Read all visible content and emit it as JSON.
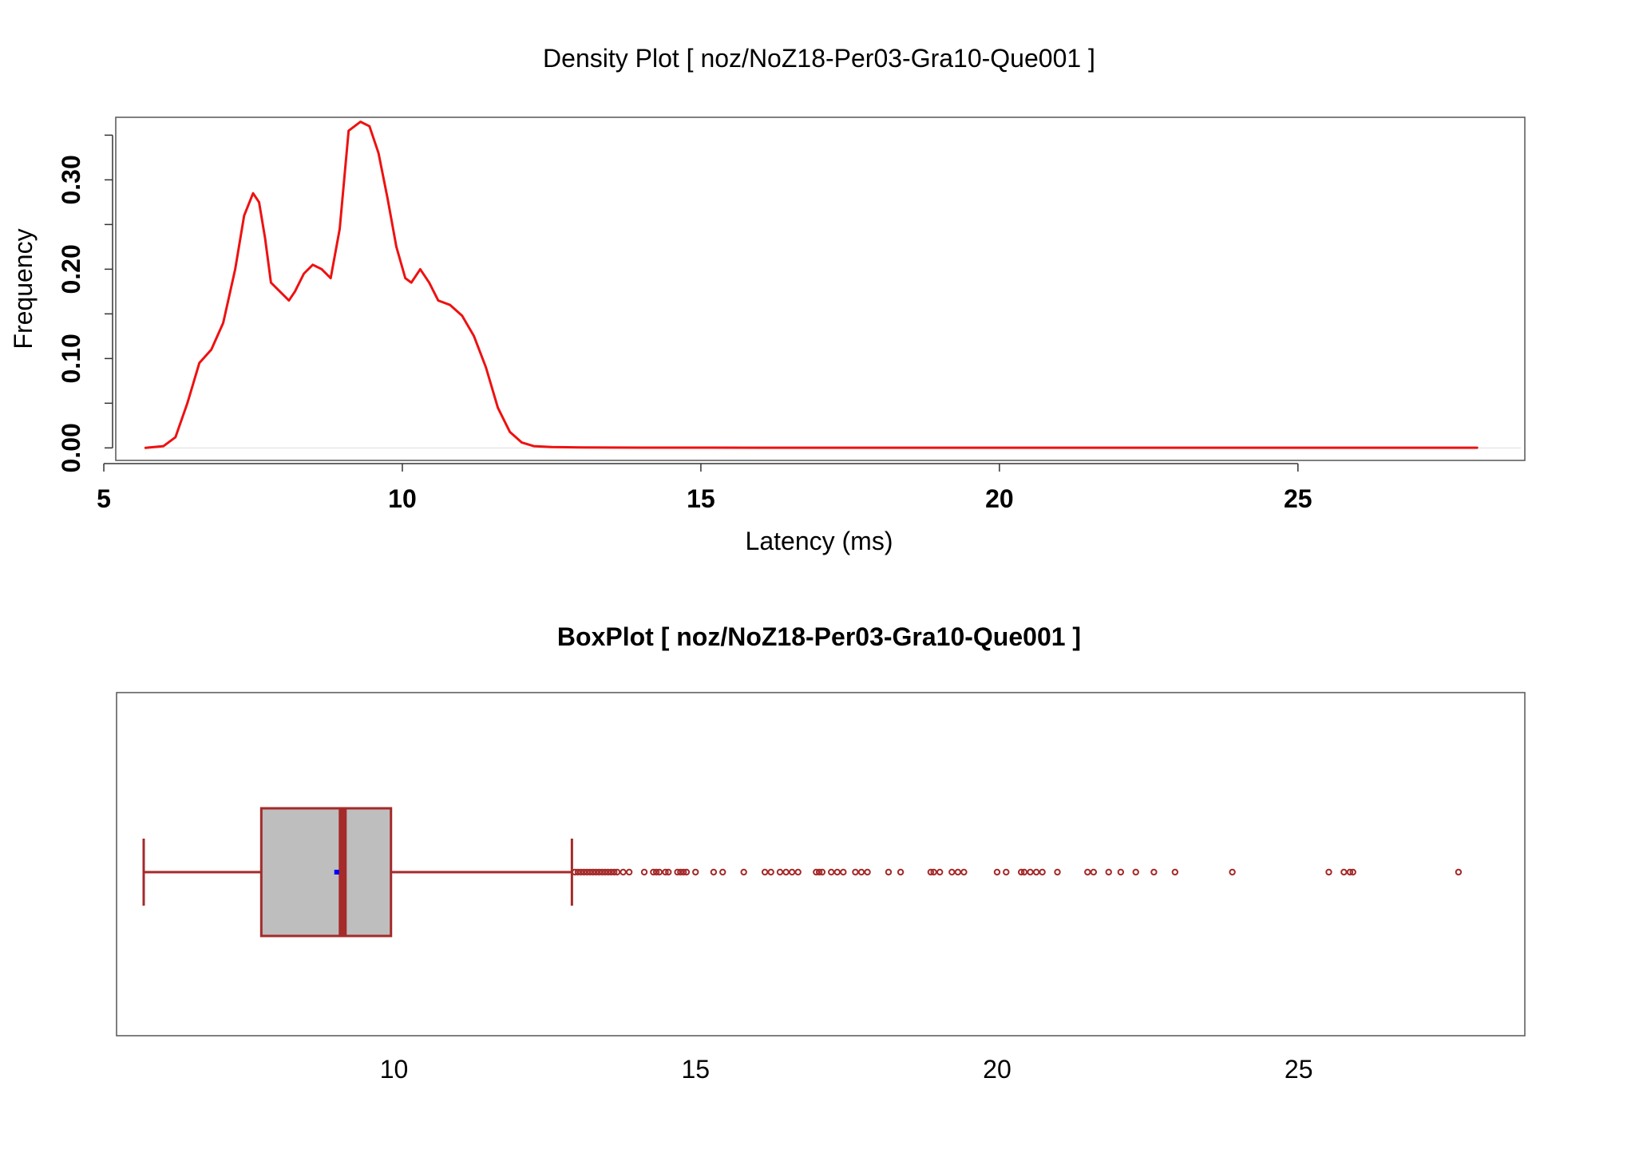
{
  "chart_data": [
    {
      "type": "line",
      "title": "Density Plot [ noz/NoZ18-Per03-Gra10-Que001 ]",
      "xlabel": "Latency (ms)",
      "ylabel": "Frequency",
      "xlim": [
        5.2,
        28.8
      ],
      "ylim": [
        -0.014,
        0.37
      ],
      "xticks": [
        5,
        10,
        15,
        20,
        25
      ],
      "xticklabels": [
        "5",
        "10",
        "15",
        "20",
        "25"
      ],
      "yticks": [
        0.0,
        0.05,
        0.1,
        0.15,
        0.2,
        0.25,
        0.3,
        0.35
      ],
      "yticklabels": [
        "0.00",
        "",
        "0.10",
        "",
        "0.20",
        "",
        "0.30",
        ""
      ],
      "grid": false,
      "legend": "none",
      "color": "#ee1111",
      "series": [
        {
          "x": [
            5.7,
            6.0,
            6.2,
            6.4,
            6.6,
            6.8,
            7.0,
            7.2,
            7.35,
            7.5,
            7.6,
            7.7,
            7.8,
            7.95,
            8.1,
            8.2,
            8.35,
            8.5,
            8.65,
            8.8,
            8.95,
            9.1,
            9.3,
            9.45,
            9.6,
            9.75,
            9.9,
            10.05,
            10.15,
            10.3,
            10.45,
            10.6,
            10.8,
            11.0,
            11.2,
            11.4,
            11.6,
            11.8,
            12.0,
            12.2,
            12.5,
            13.0,
            14.0,
            16.0,
            18.0,
            20.0,
            22.0,
            24.0,
            26.0,
            28.0
          ],
          "y": [
            0.0,
            0.002,
            0.012,
            0.05,
            0.095,
            0.11,
            0.14,
            0.2,
            0.26,
            0.285,
            0.275,
            0.235,
            0.185,
            0.175,
            0.165,
            0.175,
            0.195,
            0.205,
            0.2,
            0.19,
            0.245,
            0.355,
            0.365,
            0.36,
            0.33,
            0.28,
            0.225,
            0.19,
            0.185,
            0.2,
            0.185,
            0.165,
            0.16,
            0.148,
            0.125,
            0.09,
            0.045,
            0.018,
            0.006,
            0.002,
            0.001,
            0.0005,
            0.0003,
            0.0002,
            0.0002,
            0.0002,
            0.0002,
            0.0002,
            0.0002,
            0.0002
          ]
        }
      ]
    },
    {
      "type": "boxplot",
      "title": "BoxPlot [ noz/NoZ18-Per03-Gra10-Que001 ]",
      "xlim": [
        5.4,
        28.75
      ],
      "xticks": [
        10,
        15,
        20,
        25
      ],
      "xticklabels": [
        "10",
        "15",
        "20",
        "25"
      ],
      "grid": false,
      "whisker_low": 5.85,
      "q1": 7.8,
      "median": 9.15,
      "q3": 9.95,
      "whisker_high": 12.95,
      "mean": 9.05,
      "box_color": "#bebebe",
      "border_color": "#a52a2a",
      "mean_color": "#0000ff",
      "outliers": [
        13.0,
        13.05,
        13.1,
        13.15,
        13.2,
        13.25,
        13.3,
        13.35,
        13.4,
        13.45,
        13.5,
        13.55,
        13.6,
        13.65,
        13.7,
        13.8,
        13.9,
        14.15,
        14.3,
        14.35,
        14.4,
        14.5,
        14.55,
        14.7,
        14.75,
        14.8,
        14.85,
        15.0,
        15.3,
        15.45,
        15.8,
        16.15,
        16.25,
        16.4,
        16.5,
        16.6,
        16.7,
        17.0,
        17.05,
        17.1,
        17.25,
        17.35,
        17.45,
        17.65,
        17.75,
        17.85,
        18.2,
        18.4,
        18.9,
        18.95,
        19.05,
        19.25,
        19.35,
        19.45,
        20.0,
        20.15,
        20.4,
        20.45,
        20.55,
        20.65,
        20.75,
        21.0,
        21.5,
        21.6,
        21.85,
        22.05,
        22.3,
        22.6,
        22.95,
        23.9,
        25.5,
        25.75,
        25.85,
        25.9,
        27.65
      ]
    }
  ]
}
